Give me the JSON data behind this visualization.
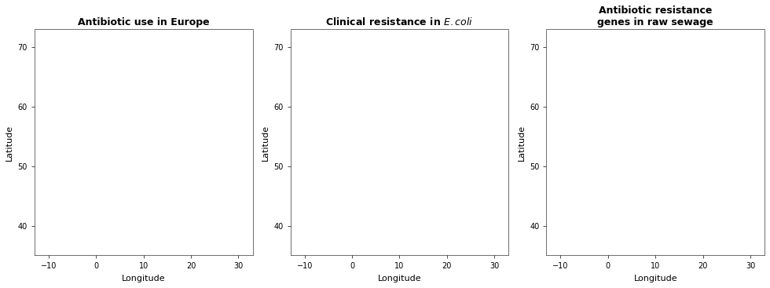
{
  "titles": [
    "Antibiotic use in Europe",
    "Clinical resistance in $\\it{E. coli}$",
    "Antibiotic resistance\ngenes in raw sewage"
  ],
  "xlim": [
    -13,
    33
  ],
  "ylim": [
    35,
    73
  ],
  "xticks": [
    -10,
    0,
    10,
    20,
    30
  ],
  "yticks": [
    40,
    50,
    60,
    70
  ],
  "xlabel": "Longitude",
  "ylabel": "Latitude",
  "background_color": "#ffffff",
  "ocean_color": "#ffffff",
  "border_color": "#808080",
  "map1_colors": {
    "Norway": "#FAEAC8",
    "Sweden": "#FAEAC8",
    "Finland": "#F5D99A",
    "Denmark": "#F0B060",
    "Iceland": "#FAEAC8",
    "Estonia": "#F5D99A",
    "Latvia": "#F5D99A",
    "Lithuania": "#F5D99A",
    "Poland": "#F0B060",
    "Germany": "#E07030",
    "Netherlands": "#E07030",
    "Belgium": "#E07030",
    "Luxembourg": "#E07030",
    "France": "#D04010",
    "UK": "#F0A050",
    "Ireland": "#E07030",
    "Spain": "#F0A050",
    "Portugal": "#F0B060",
    "Italy": "#E07030",
    "Switzerland": "#C0C0C0",
    "Austria": "#E07030",
    "Czech Republic": "#F0A050",
    "Slovakia": "#F0A050",
    "Hungary": "#E07030",
    "Romania": "#C83010",
    "Bulgaria": "#F0A050",
    "Serbia": "#F0A050",
    "Croatia": "#F0A050",
    "Slovenia": "#F0A050",
    "Bosnia and Herzegovina": "#F0B060",
    "Montenegro": "#F0B060",
    "Albania": "#F0A050",
    "North Macedonia": "#F0A050",
    "Greece": "#C83010",
    "Cyprus": "#C83010",
    "Malta": "#F0A050",
    "Belarus": "#F5D99A",
    "Ukraine": "#F0A050",
    "Moldova": "#F0A050",
    "Russia": "#FAEAC8",
    "Kosovo": "#F0A050"
  },
  "map2_colors": {
    "Norway": "#FAEAC8",
    "Sweden": "#FAEAC8",
    "Finland": "#FAEAC8",
    "Denmark": "#F5D99A",
    "Iceland": "#FAEAC8",
    "Estonia": "#F0B060",
    "Latvia": "#F0B060",
    "Lithuania": "#F0B060",
    "Poland": "#F5D99A",
    "Germany": "#F5D99A",
    "Netherlands": "#F5D99A",
    "Belgium": "#F5D99A",
    "Luxembourg": "#F5D99A",
    "France": "#F0B060",
    "UK": "#F5D99A",
    "Ireland": "#F5D99A",
    "Spain": "#F0A050",
    "Portugal": "#F0A050",
    "Italy": "#D04010",
    "Switzerland": "#C0C0C0",
    "Austria": "#C83010",
    "Czech Republic": "#F0A050",
    "Slovakia": "#F0A050",
    "Hungary": "#E07030",
    "Romania": "#C83010",
    "Bulgaria": "#D04010",
    "Serbia": "#E07030",
    "Croatia": "#F0A050",
    "Slovenia": "#F0A050",
    "Bosnia and Herzegovina": "#F0B060",
    "Montenegro": "#E07030",
    "Albania": "#E07030",
    "North Macedonia": "#E07030",
    "Greece": "#F0A050",
    "Cyprus": "#C0C0C0",
    "Malta": "#E07030",
    "Belarus": "#F5D99A",
    "Ukraine": "#E07030",
    "Moldova": "#E07030",
    "Russia": "#FAEAC8",
    "Kosovo": "#F0A050"
  },
  "map3_colors": {
    "Norway": "#F5D99A",
    "Sweden": "#F5D99A",
    "Finland": "#C0C0C0",
    "Denmark": "#C0C0C0",
    "Iceland": "#F5D99A",
    "Estonia": "#C0C0C0",
    "Latvia": "#C0C0C0",
    "Lithuania": "#C0C0C0",
    "Poland": "#C0C0C0",
    "Germany": "#F0B060",
    "Netherlands": "#C0C0C0",
    "Belgium": "#C0C0C0",
    "Luxembourg": "#C0C0C0",
    "France": "#C0C0C0",
    "UK": "#C0C0C0",
    "Ireland": "#C0C0C0",
    "Spain": "#C83010",
    "Portugal": "#E07030",
    "Italy": "#C0C0C0",
    "Switzerland": "#C0C0C0",
    "Austria": "#C0C0C0",
    "Czech Republic": "#C0C0C0",
    "Slovakia": "#C0C0C0",
    "Hungary": "#C0C0C0",
    "Romania": "#C0C0C0",
    "Bulgaria": "#C0C0C0",
    "Serbia": "#C0C0C0",
    "Croatia": "#C0C0C0",
    "Slovenia": "#C0C0C0",
    "Bosnia and Herzegovina": "#C0C0C0",
    "Montenegro": "#C0C0C0",
    "Albania": "#C0C0C0",
    "North Macedonia": "#C0C0C0",
    "Greece": "#C0C0C0",
    "Cyprus": "#C0C0C0",
    "Malta": "#C0C0C0",
    "Belarus": "#C0C0C0",
    "Ukraine": "#C0C0C0",
    "Moldova": "#C0C0C0",
    "Russia": "#C0C0C0",
    "Kosovo": "#C0C0C0"
  }
}
